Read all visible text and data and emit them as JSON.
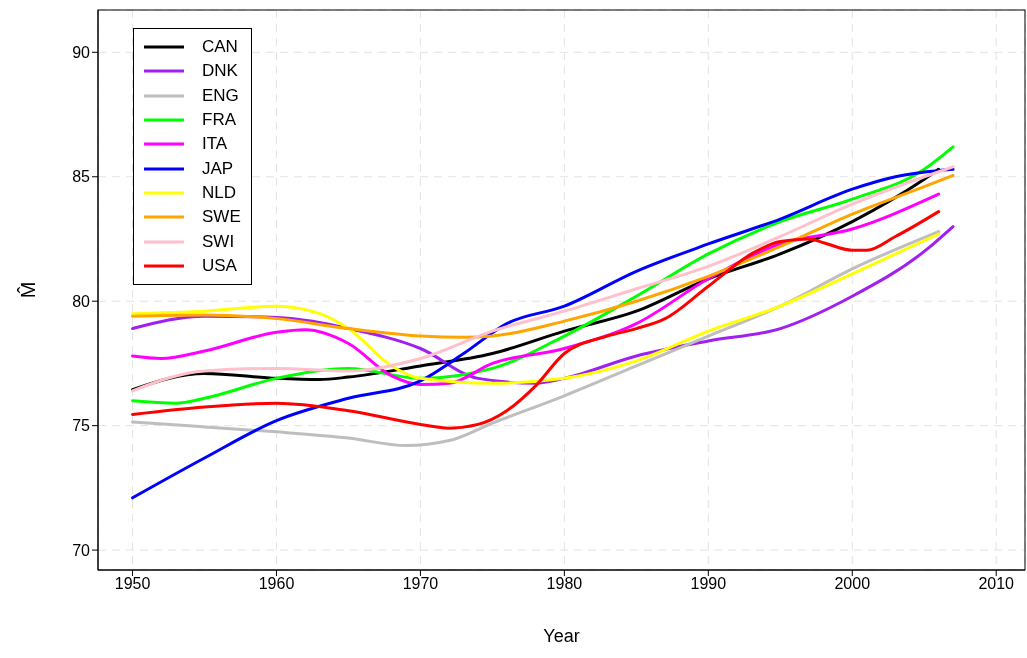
{
  "chart_data": {
    "type": "line",
    "xlabel": "Year",
    "ylabel": "M̂",
    "xlim": [
      1947.6,
      2012
    ],
    "ylim": [
      69.2,
      91.7
    ],
    "xticks": [
      1950,
      1960,
      1970,
      1980,
      1990,
      2000,
      2010
    ],
    "yticks": [
      70,
      75,
      80,
      85,
      90
    ],
    "grid": true,
    "legend": "top left",
    "line_style": "solid",
    "marker": "none",
    "series": [
      {
        "name": "CAN",
        "color": "#000000",
        "x": [
          1950,
          1955,
          1960,
          1963,
          1965,
          1970,
          1975,
          1980,
          1985,
          1990,
          1995,
          2000,
          2005,
          2006
        ],
        "values": [
          76.45,
          77.1,
          76.9,
          76.85,
          76.95,
          77.4,
          77.9,
          78.8,
          79.6,
          80.9,
          81.9,
          83.2,
          84.9,
          85.3
        ]
      },
      {
        "name": "DNK",
        "color": "#a020f0",
        "x": [
          1950,
          1955,
          1960,
          1965,
          1970,
          1974,
          1978,
          1980,
          1985,
          1990,
          1995,
          2000,
          2005,
          2007
        ],
        "values": [
          78.9,
          79.4,
          79.35,
          78.9,
          78.1,
          76.9,
          76.7,
          76.9,
          77.8,
          78.4,
          78.9,
          80.2,
          82.0,
          83.0
        ]
      },
      {
        "name": "ENG",
        "color": "#bebebe",
        "x": [
          1950,
          1955,
          1960,
          1965,
          1969,
          1972,
          1975,
          1980,
          1985,
          1990,
          1995,
          2000,
          2006
        ],
        "values": [
          75.15,
          74.95,
          74.75,
          74.5,
          74.2,
          74.4,
          75.1,
          76.2,
          77.4,
          78.6,
          79.8,
          81.3,
          82.8
        ]
      },
      {
        "name": "FRA",
        "color": "#00ff00",
        "x": [
          1950,
          1953,
          1955,
          1960,
          1965,
          1970,
          1975,
          1980,
          1985,
          1990,
          1995,
          2000,
          2005,
          2007
        ],
        "values": [
          76.0,
          75.9,
          76.1,
          76.9,
          77.3,
          76.9,
          77.3,
          78.6,
          80.2,
          81.9,
          83.2,
          84.1,
          85.3,
          86.2
        ]
      },
      {
        "name": "ITA",
        "color": "#ff00ff",
        "x": [
          1950,
          1952,
          1955,
          1960,
          1962,
          1965,
          1968,
          1970,
          1972,
          1975,
          1980,
          1985,
          1990,
          1995,
          2000,
          2006
        ],
        "values": [
          77.8,
          77.7,
          78.0,
          78.75,
          78.85,
          78.3,
          77.0,
          76.65,
          76.7,
          77.5,
          78.1,
          79.1,
          80.9,
          82.3,
          82.9,
          84.3
        ]
      },
      {
        "name": "JAP",
        "color": "#0000ff",
        "x": [
          1950,
          1955,
          1960,
          1965,
          1970,
          1973,
          1976,
          1980,
          1985,
          1990,
          1995,
          2000,
          2003,
          2007
        ],
        "values": [
          72.1,
          73.7,
          75.2,
          76.1,
          76.8,
          77.9,
          79.1,
          79.8,
          81.2,
          82.3,
          83.3,
          84.5,
          85.0,
          85.3
        ]
      },
      {
        "name": "NLD",
        "color": "#ffff00",
        "x": [
          1950,
          1955,
          1960,
          1963,
          1965,
          1968,
          1970,
          1975,
          1980,
          1985,
          1990,
          1995,
          2000,
          2006
        ],
        "values": [
          79.5,
          79.6,
          79.8,
          79.5,
          78.9,
          77.4,
          76.9,
          76.7,
          76.9,
          77.6,
          78.8,
          79.8,
          81.1,
          82.7
        ]
      },
      {
        "name": "SWE",
        "color": "#ffa500",
        "x": [
          1950,
          1955,
          1960,
          1965,
          1970,
          1973,
          1975,
          1980,
          1985,
          1990,
          1995,
          2000,
          2005,
          2007
        ],
        "values": [
          79.4,
          79.45,
          79.3,
          78.9,
          78.6,
          78.55,
          78.6,
          79.2,
          80.0,
          81.0,
          82.2,
          83.5,
          84.6,
          85.05
        ]
      },
      {
        "name": "SWI",
        "color": "#ffc0cb",
        "x": [
          1950,
          1955,
          1960,
          1965,
          1970,
          1975,
          1980,
          1985,
          1990,
          1995,
          2000,
          2005,
          2007
        ],
        "values": [
          76.4,
          77.2,
          77.3,
          77.2,
          77.7,
          78.8,
          79.6,
          80.5,
          81.4,
          82.6,
          83.9,
          85.0,
          85.4
        ]
      },
      {
        "name": "USA",
        "color": "#ff0000",
        "x": [
          1950,
          1955,
          1960,
          1965,
          1970,
          1972,
          1974,
          1976,
          1978,
          1980,
          1983,
          1985,
          1987,
          1990,
          1993,
          1995,
          1997,
          1998,
          2000,
          2001,
          2003,
          2006
        ],
        "values": [
          75.45,
          75.75,
          75.9,
          75.6,
          75.05,
          74.9,
          75.05,
          75.6,
          76.6,
          77.9,
          78.6,
          78.9,
          79.3,
          80.6,
          81.9,
          82.4,
          82.5,
          82.35,
          82.05,
          82.05,
          82.6,
          83.6
        ]
      }
    ]
  }
}
